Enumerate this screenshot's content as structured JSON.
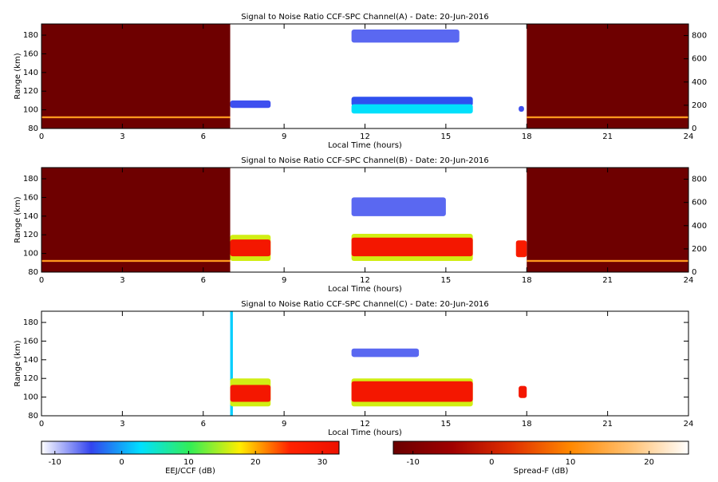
{
  "chart_data": [
    {
      "type": "heatmap",
      "title": "Signal to Noise Ratio CCF-SPC Channel(A) - Date: 20-Jun-2016",
      "x_label": "Local Time (hours)",
      "y_label": "Range (km)",
      "xlim": [
        0,
        24
      ],
      "xticks": [
        0,
        3,
        6,
        9,
        12,
        15,
        18,
        21,
        24
      ],
      "ylim": [
        80,
        192
      ],
      "yticks": [
        80,
        100,
        120,
        140,
        160,
        180
      ],
      "y2lim": [
        0,
        900
      ],
      "y2ticks": [
        0,
        200,
        400,
        600,
        800
      ],
      "spread_f": [
        {
          "x": [
            0,
            7
          ],
          "y": [
            80,
            192
          ],
          "value": -12
        },
        {
          "x": [
            18,
            24
          ],
          "y": [
            80,
            192
          ],
          "value": -12
        },
        {
          "x": [
            0,
            7
          ],
          "y": [
            91,
            93
          ],
          "value": 12
        },
        {
          "x": [
            18,
            24
          ],
          "y": [
            91,
            93
          ],
          "value": 12
        }
      ],
      "eej": [
        {
          "x": [
            7,
            8.5
          ],
          "y": [
            102,
            110
          ],
          "value": -5
        },
        {
          "x": [
            11.5,
            15.5
          ],
          "y": [
            172,
            186
          ],
          "value": -6
        },
        {
          "x": [
            11.5,
            16
          ],
          "y": [
            104,
            114
          ],
          "value": -4
        },
        {
          "x": [
            11.5,
            16
          ],
          "y": [
            96,
            106
          ],
          "value": 3
        },
        {
          "x": [
            17.7,
            17.9
          ],
          "y": [
            98,
            104
          ],
          "value": -5
        }
      ]
    },
    {
      "type": "heatmap",
      "title": "Signal to Noise Ratio CCF-SPC Channel(B) - Date: 20-Jun-2016",
      "x_label": "Local Time (hours)",
      "y_label": "Range (km)",
      "xlim": [
        0,
        24
      ],
      "xticks": [
        0,
        3,
        6,
        9,
        12,
        15,
        18,
        21,
        24
      ],
      "ylim": [
        80,
        192
      ],
      "yticks": [
        80,
        100,
        120,
        140,
        160,
        180
      ],
      "y2lim": [
        0,
        900
      ],
      "y2ticks": [
        0,
        200,
        400,
        600,
        800
      ],
      "spread_f": [
        {
          "x": [
            0,
            7
          ],
          "y": [
            80,
            192
          ],
          "value": -12
        },
        {
          "x": [
            18,
            24
          ],
          "y": [
            80,
            192
          ],
          "value": -12
        },
        {
          "x": [
            0,
            7
          ],
          "y": [
            91,
            93
          ],
          "value": 12
        },
        {
          "x": [
            18,
            24
          ],
          "y": [
            91,
            93
          ],
          "value": 12
        }
      ],
      "eej": [
        {
          "x": [
            7,
            8.5
          ],
          "y": [
            92,
            120
          ],
          "value": 16
        },
        {
          "x": [
            7,
            8.5
          ],
          "y": [
            97,
            115
          ],
          "value": 30
        },
        {
          "x": [
            11.5,
            16
          ],
          "y": [
            92,
            121
          ],
          "value": 16
        },
        {
          "x": [
            11.5,
            16
          ],
          "y": [
            97,
            117
          ],
          "value": 30
        },
        {
          "x": [
            11.5,
            15
          ],
          "y": [
            140,
            160
          ],
          "value": -6
        },
        {
          "x": [
            17.6,
            18
          ],
          "y": [
            96,
            114
          ],
          "value": 28
        }
      ]
    },
    {
      "type": "heatmap",
      "title": "Signal to Noise Ratio CCF-SPC Channel(C) - Date: 20-Jun-2016",
      "x_label": "Local Time (hours)",
      "y_label": "Range (km)",
      "xlim": [
        0,
        24
      ],
      "xticks": [
        0,
        3,
        6,
        9,
        12,
        15,
        18,
        21,
        24
      ],
      "ylim": [
        80,
        192
      ],
      "yticks": [
        80,
        100,
        120,
        140,
        160,
        180
      ],
      "spread_f": [],
      "eej": [
        {
          "x": [
            7,
            7.1
          ],
          "y": [
            80,
            192
          ],
          "value": 2
        },
        {
          "x": [
            7,
            8.5
          ],
          "y": [
            90,
            120
          ],
          "value": 16
        },
        {
          "x": [
            7,
            8.5
          ],
          "y": [
            95,
            113
          ],
          "value": 30
        },
        {
          "x": [
            11.5,
            16
          ],
          "y": [
            90,
            120
          ],
          "value": 16
        },
        {
          "x": [
            11.5,
            16
          ],
          "y": [
            95,
            117
          ],
          "value": 30
        },
        {
          "x": [
            11.5,
            14
          ],
          "y": [
            143,
            152
          ],
          "value": -6
        },
        {
          "x": [
            17.7,
            18
          ],
          "y": [
            99,
            112
          ],
          "value": 30
        }
      ]
    }
  ],
  "colorbars": [
    {
      "label": "EEJ/CCF (dB)",
      "clim": [
        -12,
        32.5
      ],
      "ticks": [
        -10,
        0,
        10,
        20,
        30
      ],
      "colors": [
        "#ffffff",
        "#3344ee",
        "#00e0ff",
        "#33ee55",
        "#ffee00",
        "#ff2200",
        "#ee1100"
      ]
    },
    {
      "label": "Spread-F (dB)",
      "clim": [
        -12.5,
        25
      ],
      "ticks": [
        -10,
        0,
        10,
        20
      ],
      "colors": [
        "#6a0000",
        "#a00000",
        "#e03000",
        "#ff8800",
        "#ffc070",
        "#ffffff"
      ]
    }
  ]
}
